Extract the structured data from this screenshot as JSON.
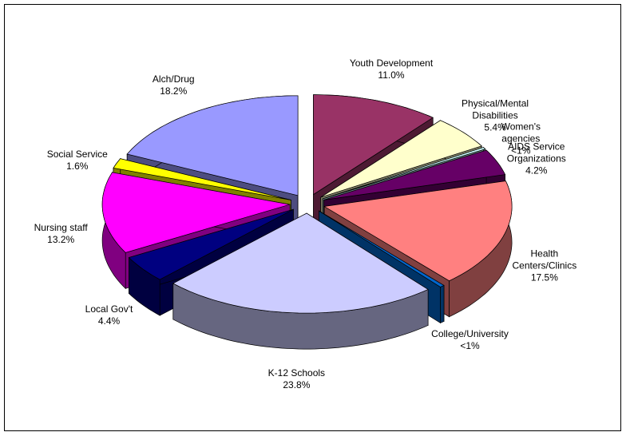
{
  "chart_data": {
    "type": "pie3d",
    "categories": [
      "Youth Development",
      "Physical/Mental\nDisabilities",
      "Women's\nagencies",
      "AIDS Service\nOrganizations",
      "Health Centers/Clinics",
      "College/University",
      "K-12 Schools",
      "Local Gov't",
      "Nursing staff",
      "Social Service",
      "Alch/Drug"
    ],
    "values": [
      11.0,
      5.4,
      0.3,
      4.2,
      17.5,
      0.4,
      23.8,
      4.4,
      13.2,
      1.6,
      18.2
    ],
    "value_labels": [
      "11.0%",
      "5.4%",
      "<1%",
      "4.2%",
      "17.5%",
      "<1%",
      "23.8%",
      "4.4%",
      "13.2%",
      "1.6%",
      "18.2%"
    ],
    "colors": [
      "#993366",
      "#ffffcc",
      "#ccffff",
      "#660066",
      "#ff8080",
      "#0066cc",
      "#ccccff",
      "#000080",
      "#ff00ff",
      "#ffff00",
      "#9999ff"
    ]
  }
}
